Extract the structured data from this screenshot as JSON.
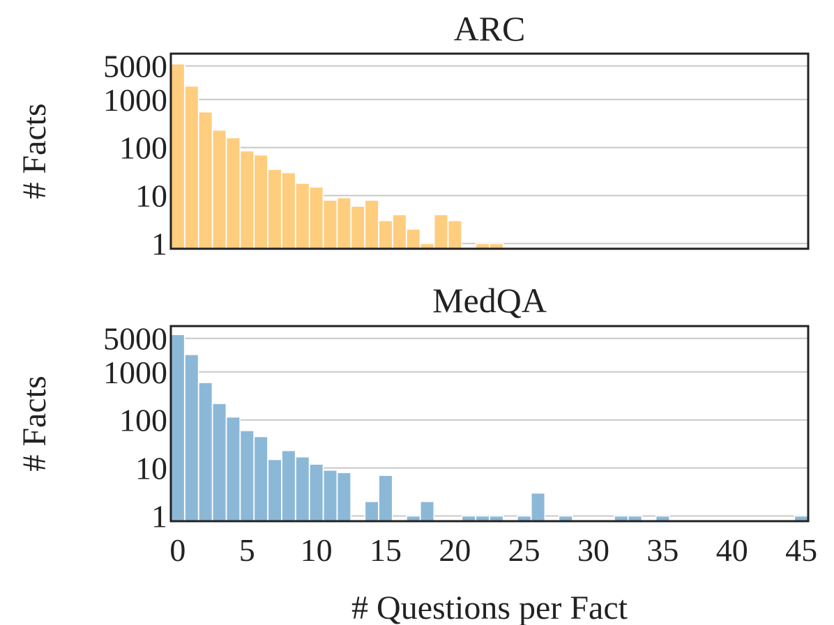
{
  "chart_data": [
    {
      "type": "bar",
      "title": "ARC",
      "xlabel": "",
      "ylabel": "# Facts",
      "yscale": "log",
      "ylim": [
        0.78,
        9000
      ],
      "xlim": [
        -0.5,
        45.5
      ],
      "yticks": [
        1,
        10,
        100,
        1000,
        5000
      ],
      "ytick_labels": [
        "1",
        "10",
        "100",
        "1000",
        "5000"
      ],
      "xticks_visible": false,
      "color": "#ffcd7e",
      "x": [
        0,
        1,
        2,
        3,
        4,
        5,
        6,
        7,
        8,
        9,
        10,
        11,
        12,
        13,
        14,
        15,
        16,
        17,
        18,
        19,
        20,
        21,
        22,
        23
      ],
      "values": [
        5500,
        1900,
        550,
        230,
        160,
        85,
        70,
        35,
        30,
        18,
        15,
        8,
        9,
        6,
        8,
        3,
        4,
        2,
        1,
        4,
        3,
        0,
        1,
        1
      ]
    },
    {
      "type": "bar",
      "title": "MedQA",
      "xlabel": "# Questions per Fact",
      "ylabel": "# Facts",
      "yscale": "log",
      "ylim": [
        0.78,
        9000
      ],
      "xlim": [
        -0.5,
        45.5
      ],
      "yticks": [
        1,
        10,
        100,
        1000,
        5000
      ],
      "ytick_labels": [
        "1",
        "10",
        "100",
        "1000",
        "5000"
      ],
      "xticks": [
        0,
        5,
        10,
        15,
        20,
        25,
        30,
        35,
        40,
        45
      ],
      "xtick_labels": [
        "0",
        "5",
        "10",
        "15",
        "20",
        "25",
        "30",
        "35",
        "40",
        "45"
      ],
      "color": "#8cb8d8",
      "x": [
        0,
        1,
        2,
        3,
        4,
        5,
        6,
        7,
        8,
        9,
        10,
        11,
        12,
        13,
        14,
        15,
        16,
        17,
        18,
        19,
        20,
        21,
        22,
        23,
        24,
        25,
        26,
        27,
        28,
        29,
        30,
        31,
        32,
        33,
        34,
        35,
        36,
        37,
        38,
        39,
        40,
        41,
        42,
        43,
        44,
        45
      ],
      "values": [
        6000,
        2300,
        600,
        220,
        115,
        60,
        45,
        15,
        23,
        17,
        12,
        9,
        8,
        0,
        2,
        7,
        0,
        1,
        2,
        0,
        0,
        1,
        1,
        1,
        0,
        1,
        3,
        0,
        1,
        0,
        0,
        0,
        1,
        1,
        0,
        1,
        0,
        0,
        0,
        0,
        0,
        0,
        0,
        0,
        0,
        1
      ]
    }
  ]
}
